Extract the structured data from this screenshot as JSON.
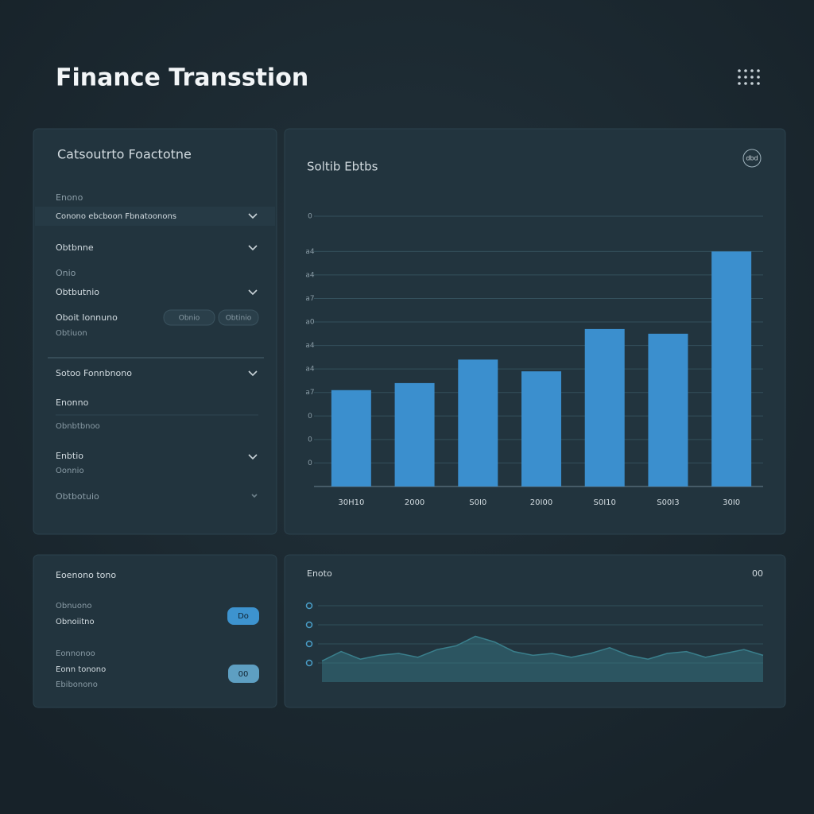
{
  "header": {
    "title": "Finance Transstion"
  },
  "filters": {
    "title": "Catsoutrto Foactotne",
    "date_label": "Enono",
    "date_value": "Conono ebcboon Fbnatoonons",
    "account": "Obtbnne",
    "type_label": "Onio",
    "type_value": "Obtbutnio",
    "amount_label": "Oboit Ionnuno",
    "amount_min": "Obnio",
    "amount_max": "Obtinio",
    "amount_note": "Obtiuon",
    "sort": "Sotoo Fonnbnono",
    "range_label": "Enonno",
    "range_note": "Obnbtbnoo",
    "status": "Enbtio",
    "status_note": "Oonnio",
    "more": "Obtbotuio"
  },
  "settings": {
    "title": "Eoenono tono",
    "opt1_label": "Obnuono",
    "opt1_note": "Obnoiitno",
    "opt1_toggle": "Do",
    "opt2_label": "Eonnonoo",
    "opt2_note": "Eonn tonono",
    "opt2_extra": "Ebibonono",
    "opt2_toggle": "00"
  },
  "chart_data": [
    {
      "type": "bar",
      "title": "Soltib Ebtbs",
      "badge": "dbd",
      "color": "#3b8fce",
      "categories": [
        "30H10",
        "2000",
        "S0I0",
        "20I00",
        "S0I10",
        "S00I3",
        "30I0"
      ],
      "values": [
        4.1,
        4.4,
        5.4,
        4.9,
        6.7,
        6.5,
        10.0
      ],
      "ylim": [
        0,
        11.5
      ],
      "yticks": [
        {
          "value": 1,
          "label": "0"
        },
        {
          "value": 2,
          "label": "0"
        },
        {
          "value": 3,
          "label": "0"
        },
        {
          "value": 4,
          "label": "a7"
        },
        {
          "value": 5,
          "label": "a4"
        },
        {
          "value": 6,
          "label": "a4"
        },
        {
          "value": 7,
          "label": "a0"
        },
        {
          "value": 8,
          "label": "a7"
        },
        {
          "value": 9,
          "label": "a4"
        },
        {
          "value": 10,
          "label": "a4"
        },
        {
          "value": 11.5,
          "label": "0"
        }
      ],
      "grid": true
    },
    {
      "type": "area",
      "title": "Enoto",
      "corner_label": "00",
      "color": "#3a7f8c",
      "values": [
        1.1,
        1.6,
        1.2,
        1.4,
        1.5,
        1.3,
        1.7,
        1.9,
        2.4,
        2.1,
        1.6,
        1.4,
        1.5,
        1.3,
        1.5,
        1.8,
        1.4,
        1.2,
        1.5,
        1.6,
        1.3,
        1.5,
        1.7,
        1.4
      ],
      "ylim": [
        0,
        4.5
      ],
      "yticks": [
        1,
        2,
        3,
        4
      ],
      "grid": true
    }
  ]
}
